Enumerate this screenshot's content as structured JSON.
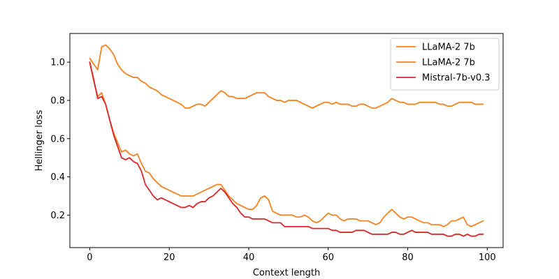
{
  "chart_data": {
    "type": "line",
    "xlabel": "Context length",
    "ylabel": "Hellinger loss",
    "xlim": [
      -5,
      104
    ],
    "ylim": [
      0.03,
      1.15
    ],
    "xticks": [
      0,
      20,
      40,
      60,
      80,
      100
    ],
    "yticks": [
      0.2,
      0.4,
      0.6,
      0.8,
      1.0
    ],
    "xtick_labels": [
      "0",
      "20",
      "40",
      "60",
      "80",
      "100"
    ],
    "ytick_labels": [
      "0.2",
      "0.4",
      "0.6",
      "0.8",
      "1.0"
    ],
    "grid": false,
    "legend_position": "top-right",
    "series": [
      {
        "name": "LLaMA-2 7b",
        "color": "#f58220",
        "x": [
          0,
          1,
          2,
          3,
          4,
          5,
          6,
          7,
          8,
          9,
          10,
          11,
          12,
          13,
          14,
          15,
          16,
          17,
          18,
          19,
          20,
          21,
          22,
          23,
          24,
          25,
          26,
          27,
          28,
          29,
          30,
          31,
          32,
          33,
          34,
          35,
          36,
          37,
          38,
          39,
          40,
          41,
          42,
          43,
          44,
          45,
          46,
          47,
          48,
          49,
          50,
          51,
          52,
          53,
          54,
          55,
          56,
          57,
          58,
          59,
          60,
          61,
          62,
          63,
          64,
          65,
          66,
          67,
          68,
          69,
          70,
          71,
          72,
          73,
          74,
          75,
          76,
          77,
          78,
          79,
          80,
          81,
          82,
          83,
          84,
          85,
          86,
          87,
          88,
          89,
          90,
          91,
          92,
          93,
          94,
          95,
          96,
          97,
          98,
          99
        ],
        "y": [
          1.02,
          0.99,
          0.96,
          1.08,
          1.09,
          1.07,
          1.04,
          0.99,
          0.96,
          0.94,
          0.93,
          0.92,
          0.92,
          0.9,
          0.89,
          0.87,
          0.86,
          0.85,
          0.83,
          0.82,
          0.81,
          0.8,
          0.79,
          0.78,
          0.76,
          0.76,
          0.77,
          0.78,
          0.78,
          0.77,
          0.79,
          0.81,
          0.83,
          0.85,
          0.84,
          0.82,
          0.82,
          0.81,
          0.81,
          0.81,
          0.82,
          0.83,
          0.84,
          0.84,
          0.84,
          0.82,
          0.81,
          0.8,
          0.8,
          0.79,
          0.8,
          0.8,
          0.8,
          0.79,
          0.78,
          0.77,
          0.76,
          0.77,
          0.78,
          0.79,
          0.79,
          0.78,
          0.79,
          0.78,
          0.78,
          0.78,
          0.77,
          0.77,
          0.78,
          0.78,
          0.77,
          0.76,
          0.76,
          0.77,
          0.78,
          0.79,
          0.81,
          0.8,
          0.79,
          0.79,
          0.78,
          0.78,
          0.78,
          0.79,
          0.79,
          0.79,
          0.79,
          0.79,
          0.78,
          0.78,
          0.77,
          0.77,
          0.78,
          0.79,
          0.79,
          0.79,
          0.79,
          0.78,
          0.78,
          0.78
        ]
      },
      {
        "name": "LLaMA-2 7b",
        "color": "#f58220",
        "x": [
          0,
          1,
          2,
          3,
          4,
          5,
          6,
          7,
          8,
          9,
          10,
          11,
          12,
          13,
          14,
          15,
          16,
          17,
          18,
          19,
          20,
          21,
          22,
          23,
          24,
          25,
          26,
          27,
          28,
          29,
          30,
          31,
          32,
          33,
          34,
          35,
          36,
          37,
          38,
          39,
          40,
          41,
          42,
          43,
          44,
          45,
          46,
          47,
          48,
          49,
          50,
          51,
          52,
          53,
          54,
          55,
          56,
          57,
          58,
          59,
          60,
          61,
          62,
          63,
          64,
          65,
          66,
          67,
          68,
          69,
          70,
          71,
          72,
          73,
          74,
          75,
          76,
          77,
          78,
          79,
          80,
          81,
          82,
          83,
          84,
          85,
          86,
          87,
          88,
          89,
          90,
          91,
          92,
          93,
          94,
          95,
          96,
          97,
          98,
          99
        ],
        "y": [
          1.0,
          0.9,
          0.82,
          0.84,
          0.78,
          0.7,
          0.63,
          0.58,
          0.53,
          0.54,
          0.52,
          0.51,
          0.52,
          0.47,
          0.43,
          0.42,
          0.39,
          0.37,
          0.35,
          0.34,
          0.33,
          0.32,
          0.31,
          0.3,
          0.3,
          0.3,
          0.3,
          0.31,
          0.32,
          0.33,
          0.34,
          0.35,
          0.36,
          0.36,
          0.33,
          0.3,
          0.28,
          0.26,
          0.25,
          0.24,
          0.23,
          0.23,
          0.25,
          0.29,
          0.3,
          0.28,
          0.22,
          0.21,
          0.2,
          0.2,
          0.2,
          0.2,
          0.19,
          0.19,
          0.2,
          0.19,
          0.17,
          0.16,
          0.17,
          0.19,
          0.21,
          0.2,
          0.2,
          0.18,
          0.17,
          0.18,
          0.18,
          0.18,
          0.17,
          0.17,
          0.17,
          0.16,
          0.15,
          0.16,
          0.19,
          0.21,
          0.23,
          0.21,
          0.19,
          0.18,
          0.19,
          0.19,
          0.18,
          0.17,
          0.16,
          0.16,
          0.15,
          0.15,
          0.15,
          0.14,
          0.15,
          0.17,
          0.17,
          0.18,
          0.19,
          0.15,
          0.14,
          0.15,
          0.16,
          0.17
        ]
      },
      {
        "name": "Mistral-7b-v0.3",
        "color": "#d62728",
        "x": [
          0,
          1,
          2,
          3,
          4,
          5,
          6,
          7,
          8,
          9,
          10,
          11,
          12,
          13,
          14,
          15,
          16,
          17,
          18,
          19,
          20,
          21,
          22,
          23,
          24,
          25,
          26,
          27,
          28,
          29,
          30,
          31,
          32,
          33,
          34,
          35,
          36,
          37,
          38,
          39,
          40,
          41,
          42,
          43,
          44,
          45,
          46,
          47,
          48,
          49,
          50,
          51,
          52,
          53,
          54,
          55,
          56,
          57,
          58,
          59,
          60,
          61,
          62,
          63,
          64,
          65,
          66,
          67,
          68,
          69,
          70,
          71,
          72,
          73,
          74,
          75,
          76,
          77,
          78,
          79,
          80,
          81,
          82,
          83,
          84,
          85,
          86,
          87,
          88,
          89,
          90,
          91,
          92,
          93,
          94,
          95,
          96,
          97,
          98,
          99
        ],
        "y": [
          1.0,
          0.91,
          0.81,
          0.82,
          0.78,
          0.7,
          0.62,
          0.56,
          0.5,
          0.49,
          0.5,
          0.48,
          0.47,
          0.43,
          0.36,
          0.33,
          0.3,
          0.28,
          0.29,
          0.28,
          0.27,
          0.26,
          0.25,
          0.24,
          0.24,
          0.25,
          0.24,
          0.26,
          0.27,
          0.27,
          0.29,
          0.3,
          0.32,
          0.34,
          0.32,
          0.29,
          0.26,
          0.24,
          0.21,
          0.19,
          0.19,
          0.18,
          0.18,
          0.18,
          0.18,
          0.17,
          0.16,
          0.16,
          0.16,
          0.14,
          0.14,
          0.14,
          0.14,
          0.14,
          0.14,
          0.14,
          0.13,
          0.13,
          0.13,
          0.13,
          0.13,
          0.12,
          0.12,
          0.11,
          0.11,
          0.11,
          0.11,
          0.12,
          0.12,
          0.12,
          0.11,
          0.1,
          0.1,
          0.1,
          0.1,
          0.1,
          0.11,
          0.11,
          0.1,
          0.1,
          0.11,
          0.12,
          0.11,
          0.11,
          0.11,
          0.11,
          0.1,
          0.1,
          0.1,
          0.1,
          0.09,
          0.09,
          0.1,
          0.1,
          0.09,
          0.1,
          0.09,
          0.09,
          0.1,
          0.1
        ]
      }
    ]
  }
}
